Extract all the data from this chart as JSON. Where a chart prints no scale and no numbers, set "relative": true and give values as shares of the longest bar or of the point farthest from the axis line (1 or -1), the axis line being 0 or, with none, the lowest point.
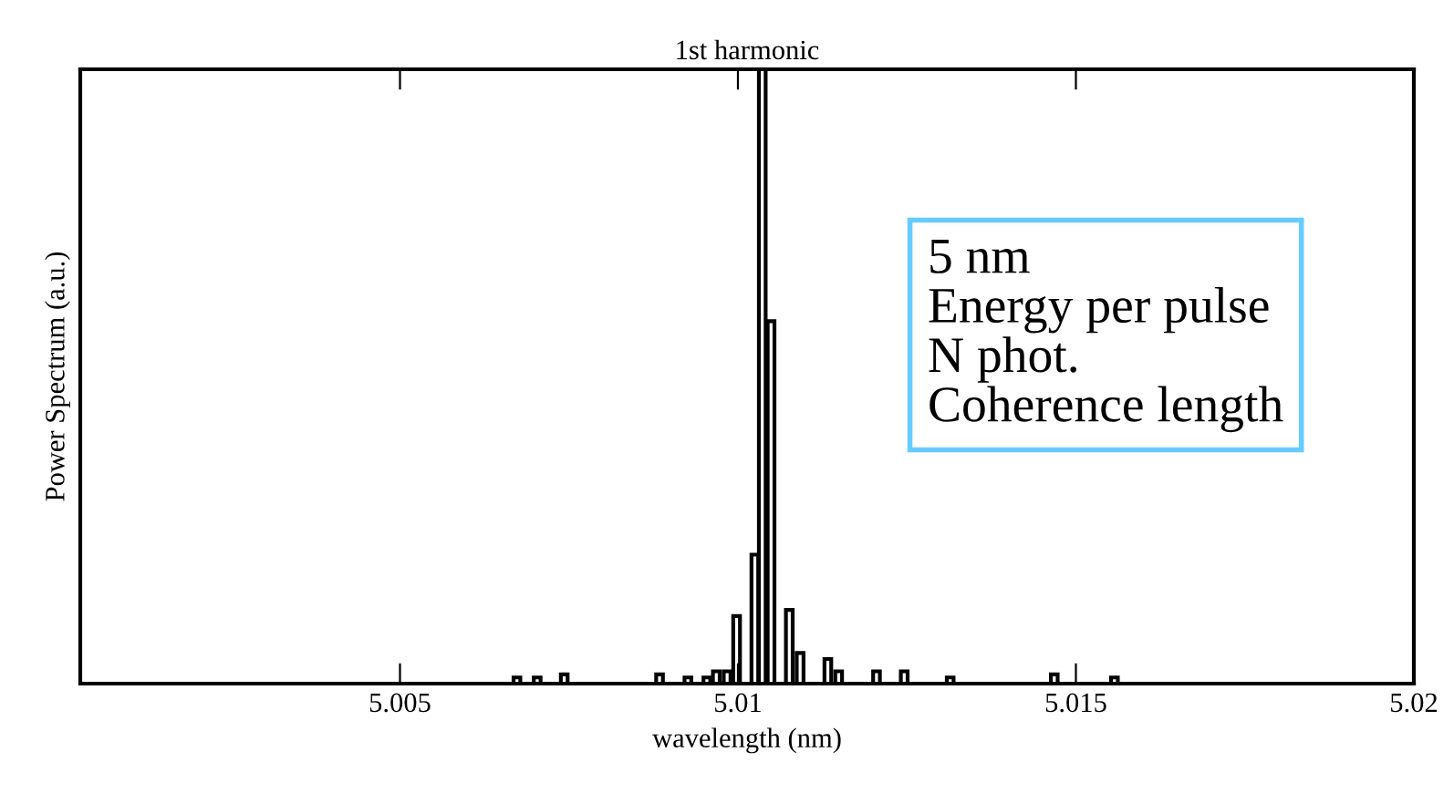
{
  "chart_data": {
    "type": "bar",
    "title": "1st harmonic",
    "xlabel": "wavelength (nm)",
    "ylabel": "Power Spectrum (a.u.)",
    "relative": true,
    "x": [
      5.00673,
      5.00703,
      5.00743,
      5.00884,
      5.00926,
      5.00954,
      5.00968,
      5.00984,
      5.00998,
      5.01025,
      5.01036,
      5.01049,
      5.01076,
      5.01092,
      5.01133,
      5.01149,
      5.01205,
      5.01246,
      5.01314,
      5.01468,
      5.01557
    ],
    "values": [
      0.01,
      0.01,
      0.015,
      0.015,
      0.01,
      0.01,
      0.02,
      0.02,
      0.11,
      0.21,
      1.0,
      0.59,
      0.12,
      0.05,
      0.04,
      0.02,
      0.02,
      0.02,
      0.01,
      0.015,
      0.01
    ],
    "color": "#000000",
    "xlim": [
      5.00027,
      5.02
    ],
    "xticks": [
      5.005,
      5.01,
      5.015,
      5.02
    ],
    "grid": false,
    "annotations": [
      "5 nm",
      "Energy per pulse",
      "N phot.",
      "Coherence length"
    ]
  }
}
